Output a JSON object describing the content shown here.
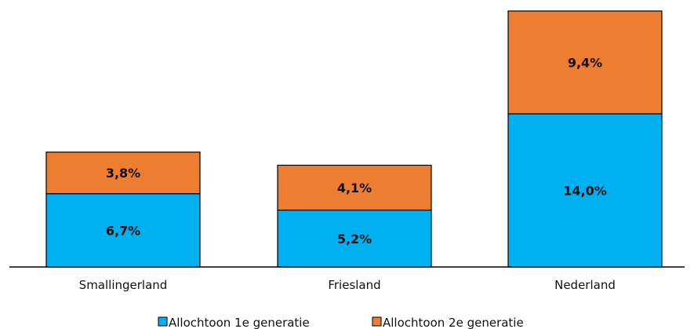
{
  "chart_data": {
    "type": "bar",
    "stacked": true,
    "categories": [
      "Smallingerland",
      "Friesland",
      "Nederland"
    ],
    "series": [
      {
        "name": "Allochtoon 1e generatie",
        "values": [
          6.7,
          5.2,
          14.0
        ],
        "labels": [
          "6,7%",
          "5,2%",
          "14,0%"
        ],
        "color": "#00B0F0"
      },
      {
        "name": "Allochtoon 2e generatie",
        "values": [
          3.8,
          4.1,
          9.4
        ],
        "labels": [
          "3,8%",
          "4,1%",
          "9,4%"
        ],
        "color": "#ED7D31"
      }
    ],
    "title": "",
    "xlabel": "",
    "ylabel": "",
    "ylim": [
      0,
      23.4
    ],
    "grid": false,
    "legend_position": "bottom"
  }
}
